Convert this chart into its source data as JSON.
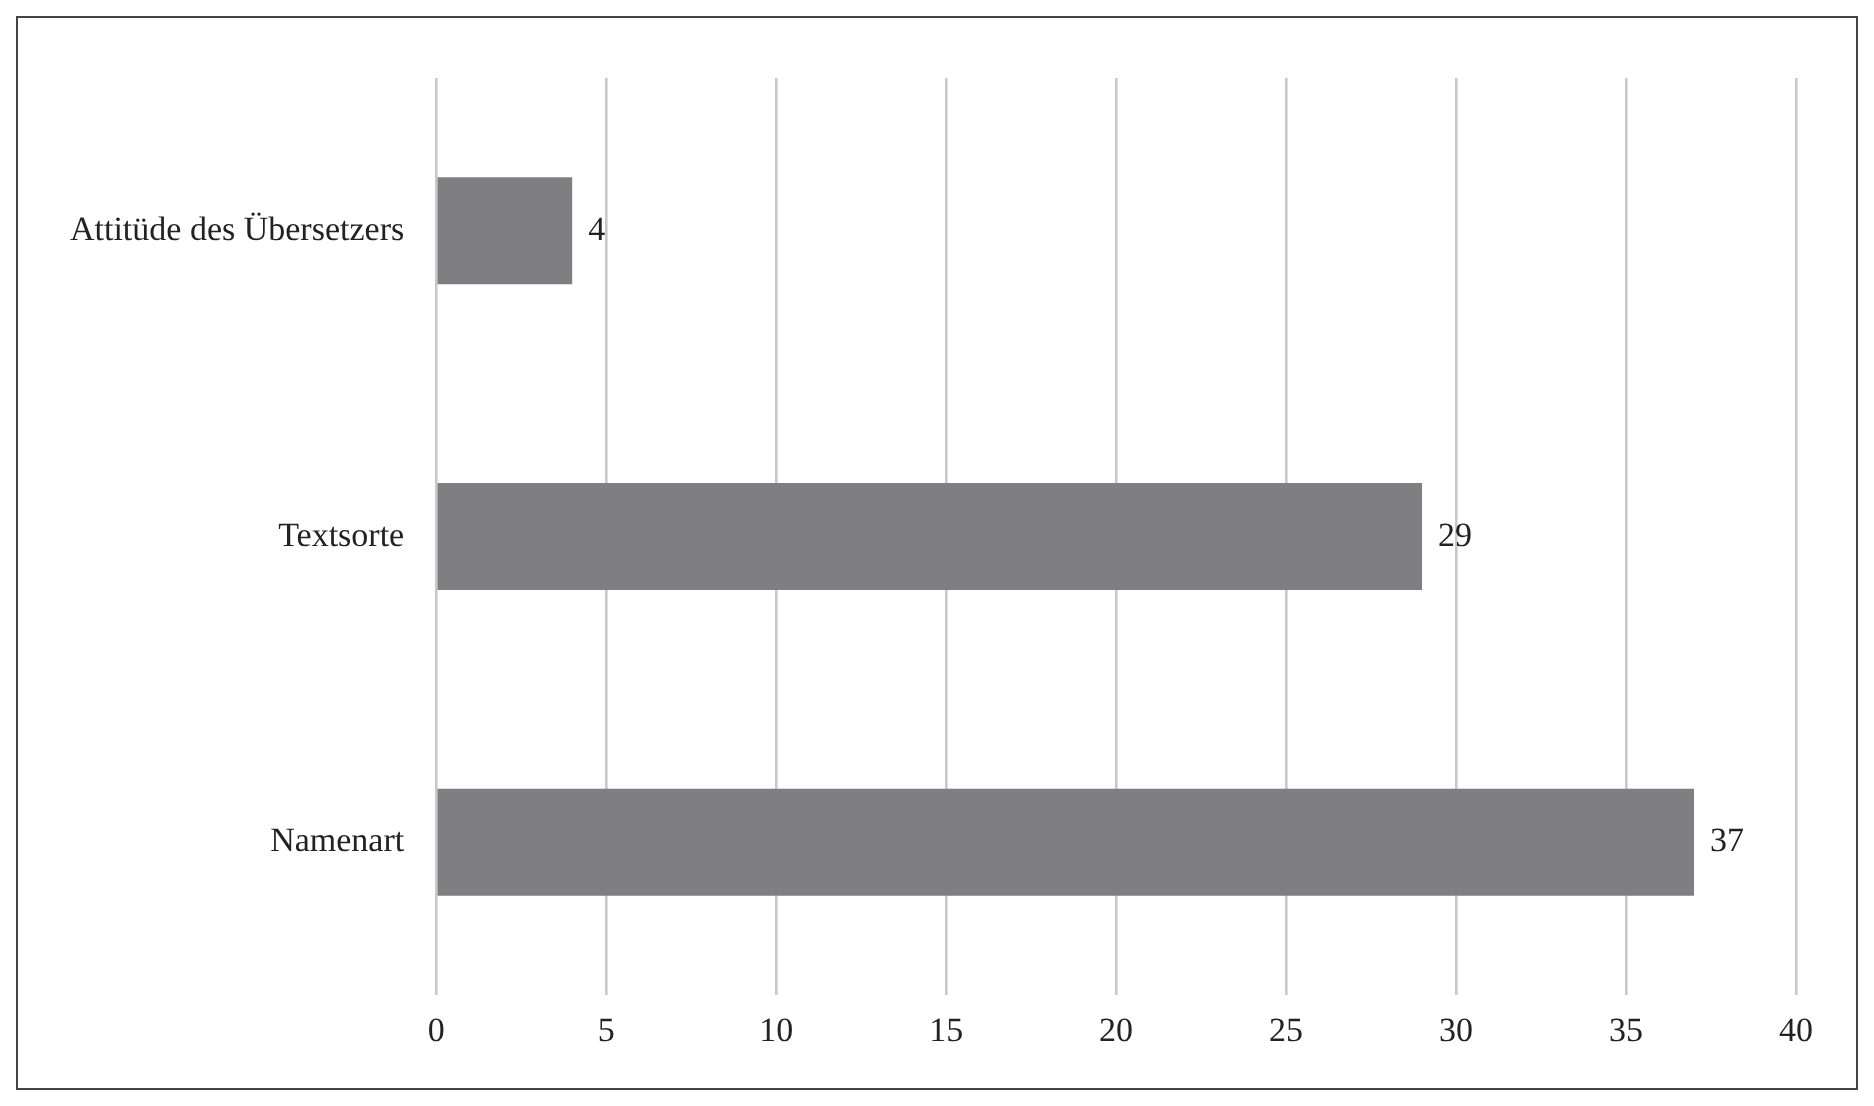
{
  "chart_data": {
    "type": "bar",
    "orientation": "horizontal",
    "categories": [
      "Attitüde des Übersetzers",
      "Textsorte",
      "Namenart"
    ],
    "values": [
      4,
      29,
      37
    ],
    "color": "#7f7f81",
    "xlim": [
      0,
      40
    ],
    "xticks": [
      0,
      5,
      10,
      15,
      20,
      25,
      30,
      35,
      40
    ],
    "grid": "x",
    "data_labels": true,
    "legend": false
  }
}
